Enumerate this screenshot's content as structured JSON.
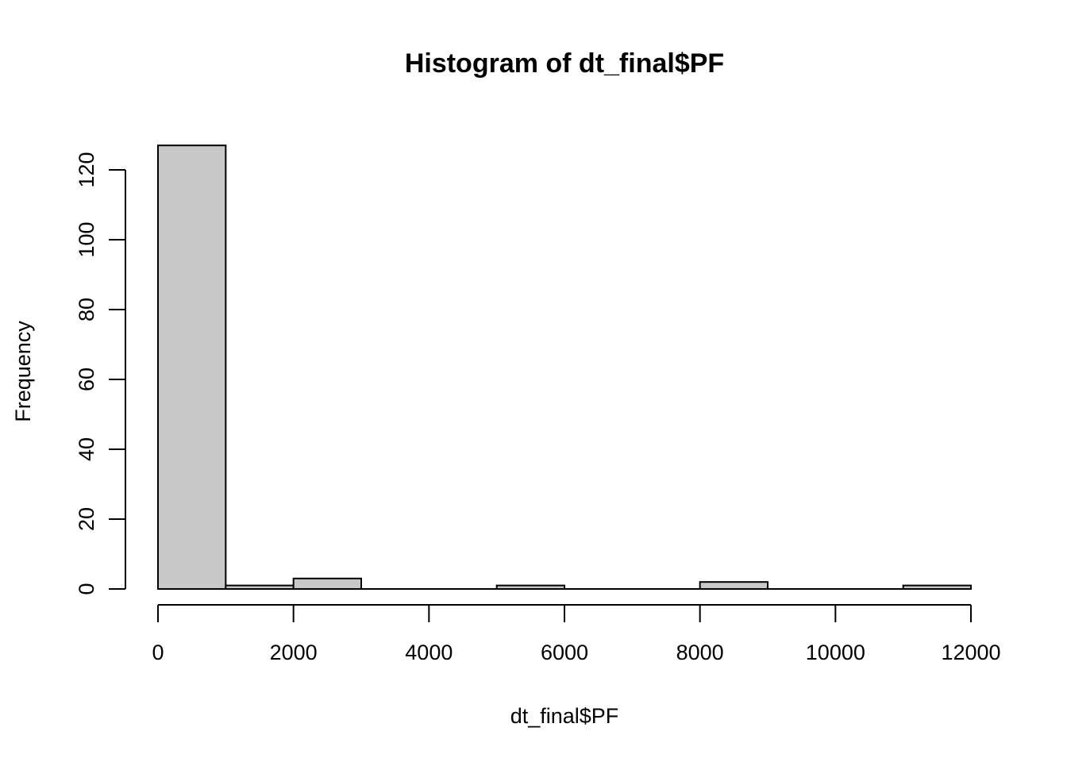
{
  "figure": {
    "background": "#FFFFFF",
    "text_color": "#000000"
  },
  "chart_data": {
    "type": "bar",
    "subtype": "histogram",
    "title": "Histogram of dt_final$PF",
    "xlabel": "dt_final$PF",
    "ylabel": "Frequency",
    "bin_edges": [
      0,
      1000,
      2000,
      3000,
      4000,
      5000,
      6000,
      7000,
      8000,
      9000,
      10000,
      11000,
      12000
    ],
    "counts": [
      127,
      1,
      3,
      0,
      0,
      1,
      0,
      0,
      2,
      0,
      0,
      1
    ],
    "x_ticks": [
      0,
      2000,
      4000,
      6000,
      8000,
      10000,
      12000
    ],
    "y_ticks": [
      0,
      20,
      40,
      60,
      80,
      100,
      120
    ],
    "xlim": [
      0,
      12000
    ],
    "ylim": [
      0,
      127
    ],
    "grid": false,
    "legend": null,
    "bar_fill": "#C8C8C8",
    "bar_stroke": "#000000",
    "axis_color": "#000000"
  }
}
